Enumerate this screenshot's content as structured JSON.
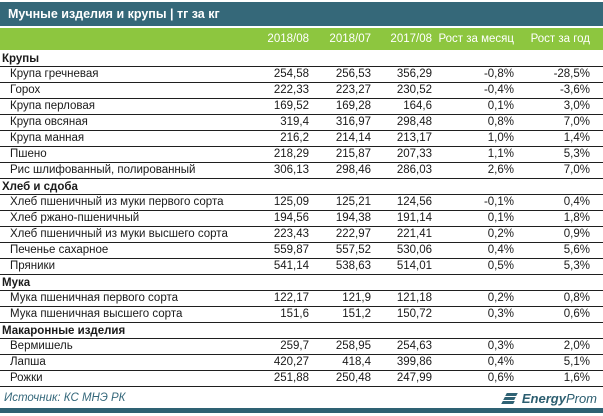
{
  "title": "Мучные изделия и крупы | тг за кг",
  "colors": {
    "title_bar_bg": "#356879",
    "header_row_bg": "#8DC63F",
    "row_border": "#1F1F1F",
    "bottom_bar_bg": "#2E6173",
    "logo_teal": "#2F6274"
  },
  "footer": {
    "source": "Источник: КС МНЭ РК",
    "logo_bold": "Energy",
    "logo_rest": "Prom"
  },
  "chart_data": {
    "type": "table",
    "title": "Мучные изделия и крупы | тг за кг",
    "unit": "тг за кг",
    "columns": [
      "2018/08",
      "2018/07",
      "2017/08",
      "Рост за месяц",
      "Рост за год"
    ],
    "sections": [
      {
        "name": "Крупы",
        "rows": [
          {
            "label": "Крупа гречневая",
            "values": [
              "254,58",
              "256,53",
              "356,29",
              "-0,8%",
              "-28,5%"
            ]
          },
          {
            "label": "Горох",
            "values": [
              "222,33",
              "223,27",
              "230,52",
              "-0,4%",
              "-3,6%"
            ]
          },
          {
            "label": "Крупа перловая",
            "values": [
              "169,52",
              "169,28",
              "164,6",
              "0,1%",
              "3,0%"
            ]
          },
          {
            "label": "Крупа овсяная",
            "values": [
              "319,4",
              "316,97",
              "298,48",
              "0,8%",
              "7,0%"
            ]
          },
          {
            "label": "Крупа манная",
            "values": [
              "216,2",
              "214,14",
              "213,17",
              "1,0%",
              "1,4%"
            ]
          },
          {
            "label": "Пшено",
            "values": [
              "218,29",
              "215,87",
              "207,33",
              "1,1%",
              "5,3%"
            ]
          },
          {
            "label": "Рис шлифованный, полированный",
            "values": [
              "306,13",
              "298,46",
              "286,03",
              "2,6%",
              "7,0%"
            ]
          }
        ]
      },
      {
        "name": "Хлеб и сдоба",
        "rows": [
          {
            "label": "Хлеб пшеничный из муки первого сорта",
            "values": [
              "125,09",
              "125,21",
              "124,56",
              "-0,1%",
              "0,4%"
            ]
          },
          {
            "label": "Хлеб ржано-пшеничный",
            "values": [
              "194,56",
              "194,38",
              "191,14",
              "0,1%",
              "1,8%"
            ]
          },
          {
            "label": "Хлеб пшеничный из муки высшего сорта",
            "values": [
              "223,43",
              "222,97",
              "221,41",
              "0,2%",
              "0,9%"
            ]
          },
          {
            "label": "Печенье сахарное",
            "values": [
              "559,87",
              "557,52",
              "530,06",
              "0,4%",
              "5,6%"
            ]
          },
          {
            "label": "Пряники",
            "values": [
              "541,14",
              "538,63",
              "514,01",
              "0,5%",
              "5,3%"
            ]
          }
        ]
      },
      {
        "name": "Мука",
        "rows": [
          {
            "label": "Мука пшеничная первого сорта",
            "values": [
              "122,17",
              "121,9",
              "121,18",
              "0,2%",
              "0,8%"
            ]
          },
          {
            "label": "Мука пшеничная высшего сорта",
            "values": [
              "151,6",
              "151,2",
              "150,72",
              "0,3%",
              "0,6%"
            ]
          }
        ]
      },
      {
        "name": "Макаронные изделия",
        "rows": [
          {
            "label": "Вермишель",
            "values": [
              "259,7",
              "258,95",
              "254,63",
              "0,3%",
              "2,0%"
            ]
          },
          {
            "label": "Лапша",
            "values": [
              "420,27",
              "418,4",
              "399,86",
              "0,4%",
              "5,1%"
            ]
          },
          {
            "label": "Рожки",
            "values": [
              "251,88",
              "250,48",
              "247,99",
              "0,6%",
              "1,6%"
            ]
          }
        ]
      }
    ]
  }
}
